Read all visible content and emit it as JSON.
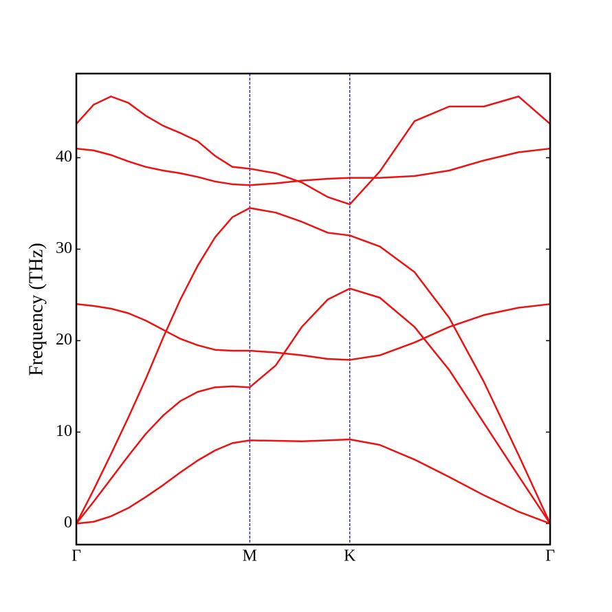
{
  "chart_data": {
    "type": "line",
    "y_label": "Frequency (THz)",
    "x": [
      0,
      0.1,
      0.2,
      0.3,
      0.4,
      0.5,
      0.6,
      0.7,
      0.8,
      0.9,
      1.0,
      1.15,
      1.3,
      1.45,
      1.577,
      1.75,
      1.95,
      2.15,
      2.35,
      2.55,
      2.732
    ],
    "xlim": [
      0,
      2.732
    ],
    "xticks": [
      {
        "value": 0,
        "label": "Γ"
      },
      {
        "value": 1,
        "label": "M"
      },
      {
        "value": 1.577,
        "label": "K"
      },
      {
        "value": 2.732,
        "label": "Γ"
      }
    ],
    "ylim": [
      -2.3,
      49.2
    ],
    "yticks": [
      0,
      10,
      20,
      30,
      40
    ],
    "high_symmetry_line_color": "#0000cc",
    "series": [
      {
        "color": "#ee1111",
        "values": [
          0,
          0.2,
          0.8,
          1.7,
          2.9,
          4.2,
          5.6,
          6.9,
          8.0,
          8.8,
          9.1,
          9.05,
          9.0,
          9.1,
          9.2,
          8.6,
          7.0,
          5.1,
          3.1,
          1.3,
          0
        ]
      },
      {
        "color": "#ee1111",
        "values": [
          0,
          2.4,
          4.9,
          7.4,
          9.8,
          11.8,
          13.4,
          14.4,
          14.9,
          15.0,
          14.9,
          17.3,
          21.5,
          24.5,
          25.7,
          24.7,
          21.5,
          16.8,
          11.0,
          5.2,
          0
        ]
      },
      {
        "color": "#ee1111",
        "values": [
          0,
          3.7,
          7.6,
          11.6,
          15.8,
          20.3,
          24.5,
          28.2,
          31.3,
          33.5,
          34.5,
          34.0,
          33.0,
          31.8,
          31.5,
          30.3,
          27.5,
          22.5,
          15.5,
          7.5,
          0
        ]
      },
      {
        "color": "#ee1111",
        "values": [
          24,
          23.8,
          23.5,
          23.0,
          22.2,
          21.2,
          20.2,
          19.5,
          19.0,
          18.9,
          18.9,
          18.7,
          18.4,
          18.0,
          17.9,
          18.4,
          19.8,
          21.5,
          22.8,
          23.6,
          24.0
        ]
      },
      {
        "color": "#ee1111",
        "values": [
          41,
          40.8,
          40.3,
          39.6,
          39.0,
          38.6,
          38.3,
          37.9,
          37.4,
          37.1,
          37.0,
          37.2,
          37.5,
          37.7,
          37.8,
          37.8,
          38.0,
          38.6,
          39.7,
          40.6,
          41.0
        ]
      },
      {
        "color": "#ee1111",
        "values": [
          43.7,
          45.8,
          46.7,
          46.0,
          44.6,
          43.5,
          42.7,
          41.8,
          40.2,
          39.0,
          38.8,
          38.3,
          37.3,
          35.7,
          34.9,
          38.5,
          44.0,
          45.6,
          45.6,
          46.7,
          43.7
        ]
      }
    ]
  }
}
